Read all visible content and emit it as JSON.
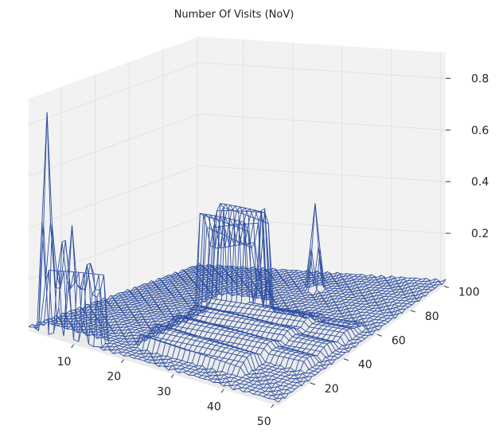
{
  "chart_data": {
    "type": "wireframe-3d",
    "title": "Number Of Visits (NoV)",
    "xlabel": "",
    "ylabel": "",
    "zlabel": "",
    "x_ticks": [
      10,
      20,
      30,
      40,
      50
    ],
    "y_ticks": [
      20,
      40,
      60,
      80,
      100
    ],
    "z_ticks": [
      0.2,
      0.4,
      0.6,
      0.8
    ],
    "x_tick_labels": [
      "10",
      "20",
      "30",
      "40",
      "50"
    ],
    "y_tick_labels": [
      "20",
      "40",
      "60",
      "80",
      "100"
    ],
    "z_tick_labels": [
      "0.2",
      "0.4",
      "0.6",
      "0.8"
    ],
    "xlim": [
      1,
      51
    ],
    "ylim": [
      1,
      101
    ],
    "zlim": [
      0,
      0.9
    ],
    "grid": true,
    "line_color": "#2e4fa0",
    "pane_color": "#f2f2f2",
    "grid_color": "#e2e2e2",
    "peaks": [
      {
        "x": 4,
        "y": 3,
        "z": 0.86
      },
      {
        "x": 7,
        "y": 4,
        "z": 0.5
      },
      {
        "x": 9,
        "y": 3,
        "z": 0.45
      },
      {
        "x": 12,
        "y": 4,
        "z": 0.42
      },
      {
        "x": 28,
        "y": 60,
        "z": 0.55
      },
      {
        "x": 30,
        "y": 85,
        "z": 0.35
      }
    ],
    "ridges": [
      {
        "x_from": 3,
        "x_to": 14,
        "y_from": 2,
        "y_to": 8,
        "z": 0.3
      },
      {
        "x_from": 17,
        "x_to": 26,
        "y_from": 55,
        "y_to": 70,
        "z": 0.38
      },
      {
        "x_from": 20,
        "x_to": 40,
        "y_from": 10,
        "y_to": 60,
        "z": 0.07
      },
      {
        "x_from": 30,
        "x_to": 48,
        "y_from": 25,
        "y_to": 60,
        "z": 0.05
      }
    ]
  }
}
